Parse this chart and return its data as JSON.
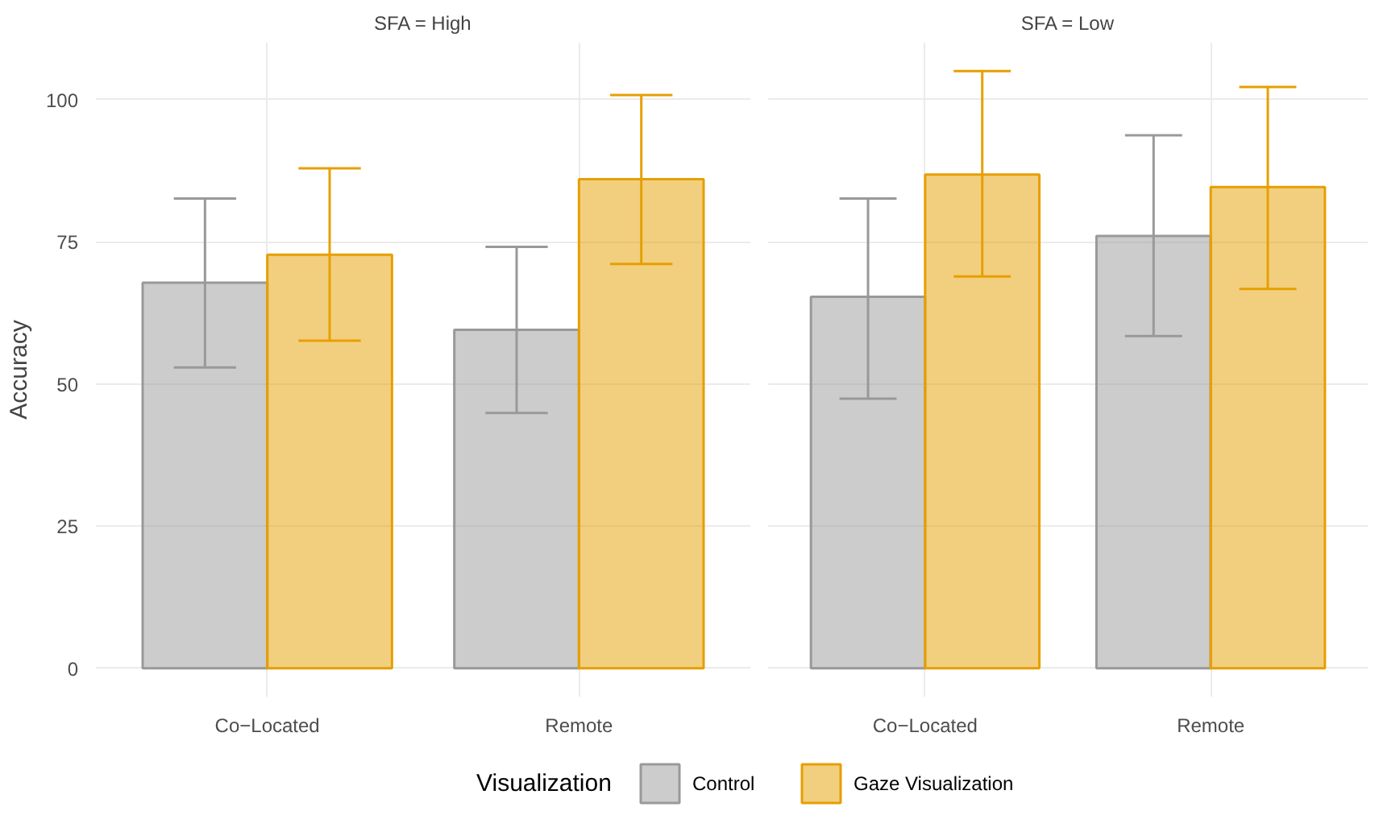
{
  "chart_data": [
    {
      "type": "bar",
      "title": "SFA = High",
      "ylabel": "Accuracy",
      "legend_title": "Visualization",
      "legend": "bottom",
      "grid": true,
      "categories": [
        "Co−Located",
        "Remote"
      ],
      "ylim": [
        -5,
        110
      ],
      "yticks": [
        0,
        25,
        50,
        75,
        100
      ],
      "series": [
        {
          "name": "Control",
          "color": "#999999",
          "values": [
            67.8,
            59.5
          ],
          "errors": [
            [
              52.9,
              82.6
            ],
            [
              44.9,
              74.1
            ]
          ]
        },
        {
          "name": "Gaze Visualization",
          "color": "#e69f00",
          "values": [
            72.7,
            86.0
          ],
          "errors": [
            [
              57.6,
              87.9
            ],
            [
              71.1,
              100.8
            ]
          ]
        }
      ]
    },
    {
      "type": "bar",
      "title": "SFA = Low",
      "grid": true,
      "tick_labels": "x",
      "categories": [
        "Co−Located",
        "Remote"
      ],
      "ylim": [
        -5,
        110
      ],
      "yticks": [
        0,
        25,
        50,
        75,
        100
      ],
      "series": [
        {
          "color": "#999999",
          "values": [
            65.3,
            76.0
          ],
          "errors": [
            [
              47.4,
              82.6
            ],
            [
              58.4,
              93.7
            ]
          ]
        },
        {
          "color": "#e69f00",
          "values": [
            86.8,
            84.6
          ],
          "errors": [
            [
              68.9,
              105.0
            ],
            [
              66.7,
              102.2
            ]
          ]
        }
      ]
    }
  ]
}
